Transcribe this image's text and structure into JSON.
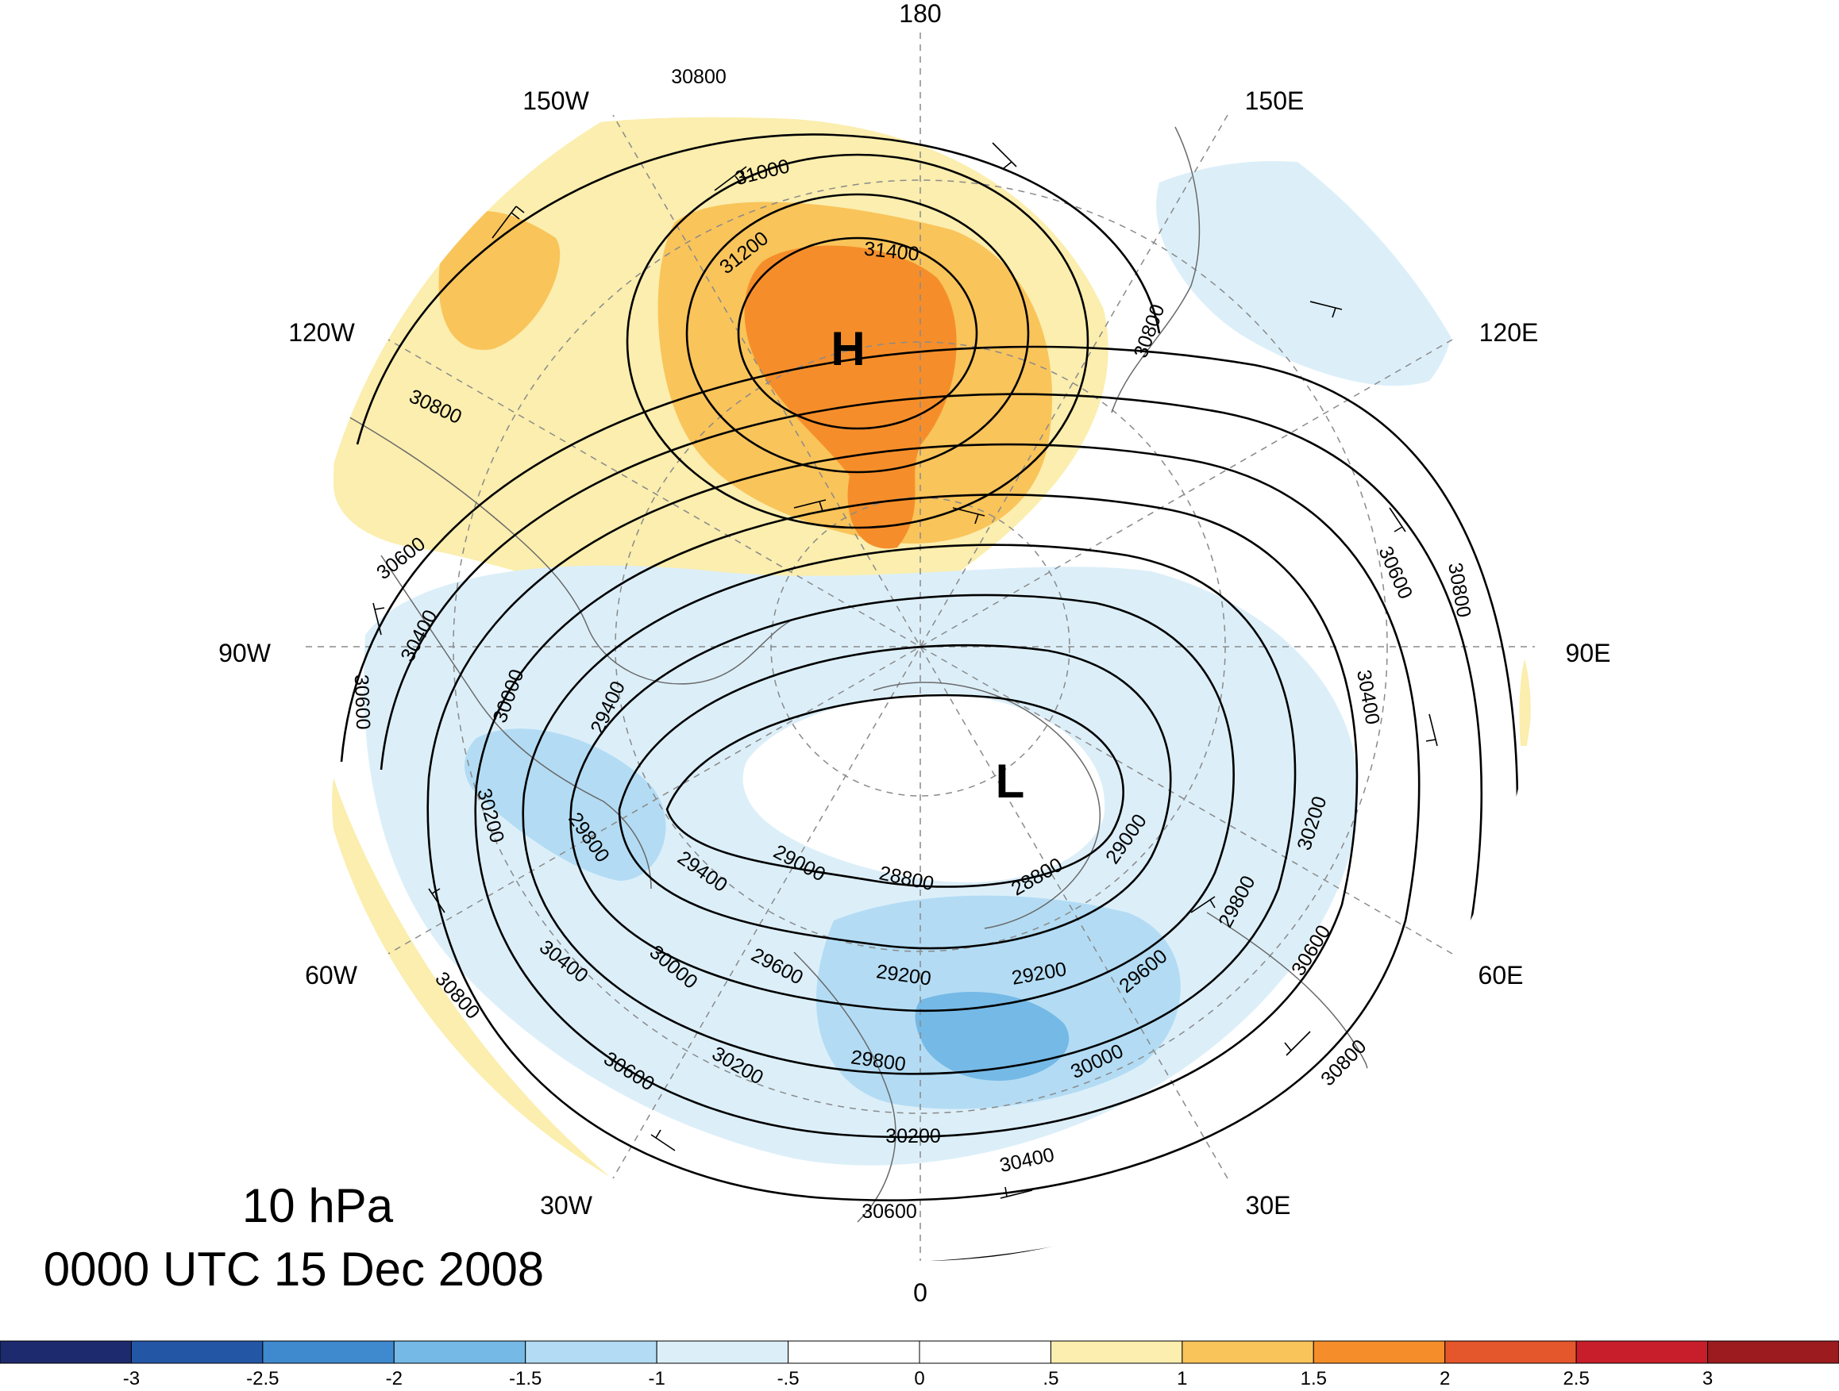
{
  "title": {
    "level": "10 hPa",
    "valid_time": "0000 UTC 15 Dec 2008"
  },
  "longitude_labels": [
    "180",
    "150E",
    "120E",
    "90E",
    "60E",
    "30E",
    "0",
    "30W",
    "60W",
    "90W",
    "120W",
    "150W"
  ],
  "centers": [
    {
      "symbol": "H",
      "type": "high"
    },
    {
      "symbol": "L",
      "type": "low"
    }
  ],
  "contour_labels": [
    "30800",
    "31000",
    "31200",
    "31400",
    "30800",
    "30800",
    "30600",
    "30400",
    "30600",
    "30000",
    "29400",
    "30200",
    "29800",
    "29000",
    "28800",
    "28800",
    "29000",
    "29400",
    "30000",
    "29600",
    "29200",
    "29200",
    "29600",
    "29800",
    "30000",
    "30200",
    "30400",
    "30600",
    "30800",
    "30200",
    "30400",
    "30600",
    "30800",
    "30200",
    "29800",
    "30400",
    "30600",
    "30800",
    "30600"
  ],
  "colorbar": {
    "ticks": [
      "-3",
      "-2.5",
      "-2",
      "-1.5",
      "-1",
      "-.5",
      "0",
      ".5",
      "1",
      "1.5",
      "2",
      "2.5",
      "3"
    ],
    "colors": [
      "#1e2a6e",
      "#2456a6",
      "#3f89cf",
      "#75b9e6",
      "#b3dcf4",
      "#dceff9",
      "#ffffff",
      "#ffffff",
      "#fbeeae",
      "#f9c45a",
      "#f58e2a",
      "#e4562b",
      "#c81d2a",
      "#9b1b1e"
    ]
  },
  "colors": {
    "contour": "#000000",
    "coast": "#6a6a6a",
    "grid": "#8a8a8a"
  }
}
